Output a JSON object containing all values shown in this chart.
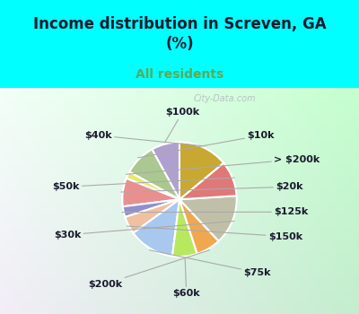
{
  "title": "Income distribution in Screven, GA\n(%)",
  "subtitle": "All residents",
  "title_color": "#1a1a2e",
  "subtitle_color": "#5aaa5a",
  "bg_cyan": "#00FFFF",
  "labels": [
    "$100k",
    "$10k",
    "> $200k",
    "$20k",
    "$125k",
    "$150k",
    "$75k",
    "$60k",
    "$200k",
    "$30k",
    "$50k",
    "$40k"
  ],
  "values": [
    8,
    9,
    2,
    8,
    3,
    5,
    13,
    7,
    7,
    14,
    10,
    14
  ],
  "colors": [
    "#b0a0d0",
    "#aac890",
    "#e8e870",
    "#e89090",
    "#9090cc",
    "#f0c0a0",
    "#a8c8f0",
    "#b8e860",
    "#f0a850",
    "#c0c0a8",
    "#e07878",
    "#c8a830"
  ],
  "label_fs": 8,
  "label_color": "#1a1a2e",
  "line_color": "#aaaaaa",
  "watermark": "City-Data.com"
}
